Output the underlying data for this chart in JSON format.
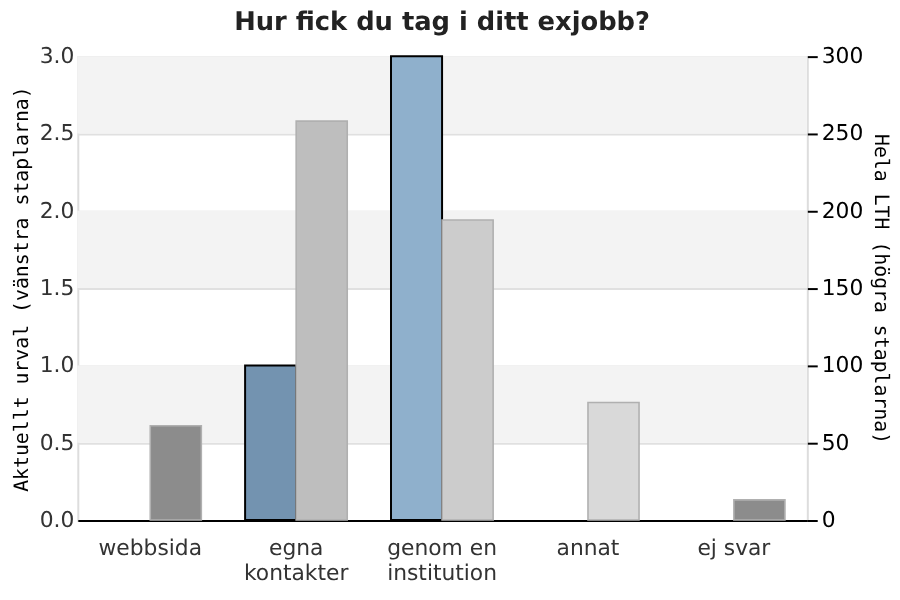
{
  "chart_data": {
    "type": "bar",
    "title": "Hur fick du tag i ditt exjobb?",
    "categories": [
      "webbsida",
      "egna kontakter",
      "genom en institution",
      "annat",
      "ej svar"
    ],
    "ylabel": "Aktuellt urval (vänstra staplarna)",
    "y2label": "Hela LTH (högra staplarna)",
    "series": [
      {
        "colors": [
          "#7393b0",
          "#7393b0",
          "#8fb0cc",
          "#7393b0",
          "#7393b0"
        ],
        "values": [
          0,
          1,
          3,
          0,
          0
        ]
      },
      {
        "axis": "y2",
        "colors": [
          "#8c8c8c",
          "#bebebe",
          "#cccccc",
          "#d9d9d9",
          "#8c8c8c"
        ],
        "values": [
          61,
          258,
          194,
          76,
          13
        ]
      }
    ],
    "ylim": [
      0,
      3
    ],
    "yticks": [
      {
        "value": 0,
        "label": "0.0"
      },
      {
        "value": 0.5,
        "label": "0.5"
      },
      {
        "value": 1,
        "label": "1.0"
      },
      {
        "value": 1.5,
        "label": "1.5"
      },
      {
        "value": 2,
        "label": "2.0"
      },
      {
        "value": 2.5,
        "label": "2.5"
      },
      {
        "value": 3,
        "label": "3.0"
      }
    ],
    "y2lim": [
      0,
      300
    ],
    "y2ticks": [
      0,
      50,
      100,
      150,
      200,
      250,
      300
    ],
    "bands": [
      {
        "axis": "y",
        "from": 0.5,
        "to": 1,
        "color": "#f3f3f3"
      },
      {
        "axis": "y",
        "from": 1.5,
        "to": 2,
        "color": "#f3f3f3"
      },
      {
        "axis": "y",
        "from": 2.5,
        "to": 3,
        "color": "#f3f3f3"
      }
    ],
    "grid": "y"
  }
}
